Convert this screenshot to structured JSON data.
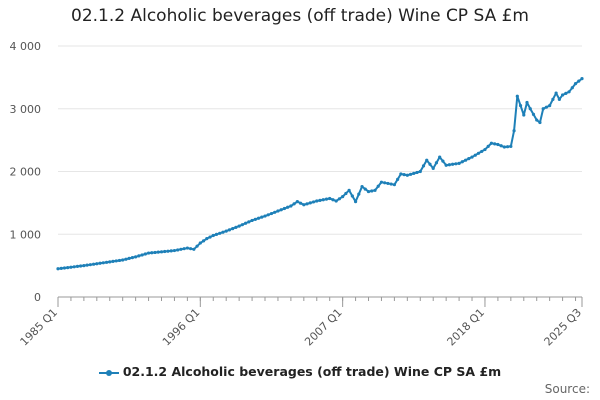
{
  "title": "02.1.2 Alcoholic beverages (off trade) Wine CP SA £m",
  "source_label": "Source:",
  "colors": {
    "series": "#1e80b8",
    "grid": "#e6e6e6",
    "axis": "#999999",
    "text": "#555555"
  },
  "chart_data": {
    "type": "line",
    "title": "02.1.2 Alcoholic beverages (off trade) Wine CP SA £m",
    "xlabel": "",
    "ylabel": "",
    "x_range": [
      1985.0,
      2025.5
    ],
    "ylim": [
      0,
      4000
    ],
    "y_ticks": [
      0,
      1000,
      2000,
      3000,
      4000
    ],
    "y_tick_labels": [
      "0",
      "1 000",
      "2 000",
      "3 000",
      "4 000"
    ],
    "x_ticks": [
      1985.0,
      1996.0,
      2007.0,
      2018.0,
      2025.5
    ],
    "x_tick_labels": [
      "1985 Q1",
      "1996 Q1",
      "2007 Q1",
      "2018 Q1",
      "2025 Q3"
    ],
    "grid": true,
    "legend_position": "bottom",
    "series": [
      {
        "name": "02.1.2 Alcoholic beverages (off trade) Wine CP SA £m",
        "points": [
          [
            1985.0,
            450
          ],
          [
            1986.0,
            475
          ],
          [
            1987.0,
            500
          ],
          [
            1988.0,
            530
          ],
          [
            1989.0,
            560
          ],
          [
            1990.0,
            590
          ],
          [
            1991.0,
            640
          ],
          [
            1992.0,
            700
          ],
          [
            1993.0,
            720
          ],
          [
            1994.0,
            740
          ],
          [
            1995.0,
            780
          ],
          [
            1995.5,
            760
          ],
          [
            1996.0,
            860
          ],
          [
            1996.5,
            930
          ],
          [
            1997.0,
            980
          ],
          [
            1998.0,
            1050
          ],
          [
            1999.0,
            1130
          ],
          [
            2000.0,
            1220
          ],
          [
            2001.0,
            1290
          ],
          [
            2002.0,
            1370
          ],
          [
            2003.0,
            1450
          ],
          [
            2003.5,
            1520
          ],
          [
            2004.0,
            1470
          ],
          [
            2005.0,
            1530
          ],
          [
            2006.0,
            1570
          ],
          [
            2006.5,
            1530
          ],
          [
            2007.0,
            1600
          ],
          [
            2007.5,
            1700
          ],
          [
            2008.0,
            1520
          ],
          [
            2008.5,
            1760
          ],
          [
            2009.0,
            1680
          ],
          [
            2009.5,
            1700
          ],
          [
            2010.0,
            1830
          ],
          [
            2011.0,
            1790
          ],
          [
            2011.5,
            1960
          ],
          [
            2012.0,
            1940
          ],
          [
            2013.0,
            2000
          ],
          [
            2013.5,
            2180
          ],
          [
            2014.0,
            2050
          ],
          [
            2014.5,
            2230
          ],
          [
            2015.0,
            2100
          ],
          [
            2016.0,
            2130
          ],
          [
            2017.0,
            2230
          ],
          [
            2018.0,
            2350
          ],
          [
            2018.5,
            2450
          ],
          [
            2019.0,
            2430
          ],
          [
            2019.5,
            2390
          ],
          [
            2020.0,
            2400
          ],
          [
            2020.25,
            2650
          ],
          [
            2020.5,
            3200
          ],
          [
            2020.75,
            3050
          ],
          [
            2021.0,
            2900
          ],
          [
            2021.25,
            3100
          ],
          [
            2021.5,
            3000
          ],
          [
            2022.0,
            2820
          ],
          [
            2022.25,
            2780
          ],
          [
            2022.5,
            3000
          ],
          [
            2023.0,
            3050
          ],
          [
            2023.5,
            3250
          ],
          [
            2023.75,
            3150
          ],
          [
            2024.0,
            3220
          ],
          [
            2024.5,
            3270
          ],
          [
            2025.0,
            3400
          ],
          [
            2025.5,
            3480
          ]
        ]
      }
    ]
  }
}
